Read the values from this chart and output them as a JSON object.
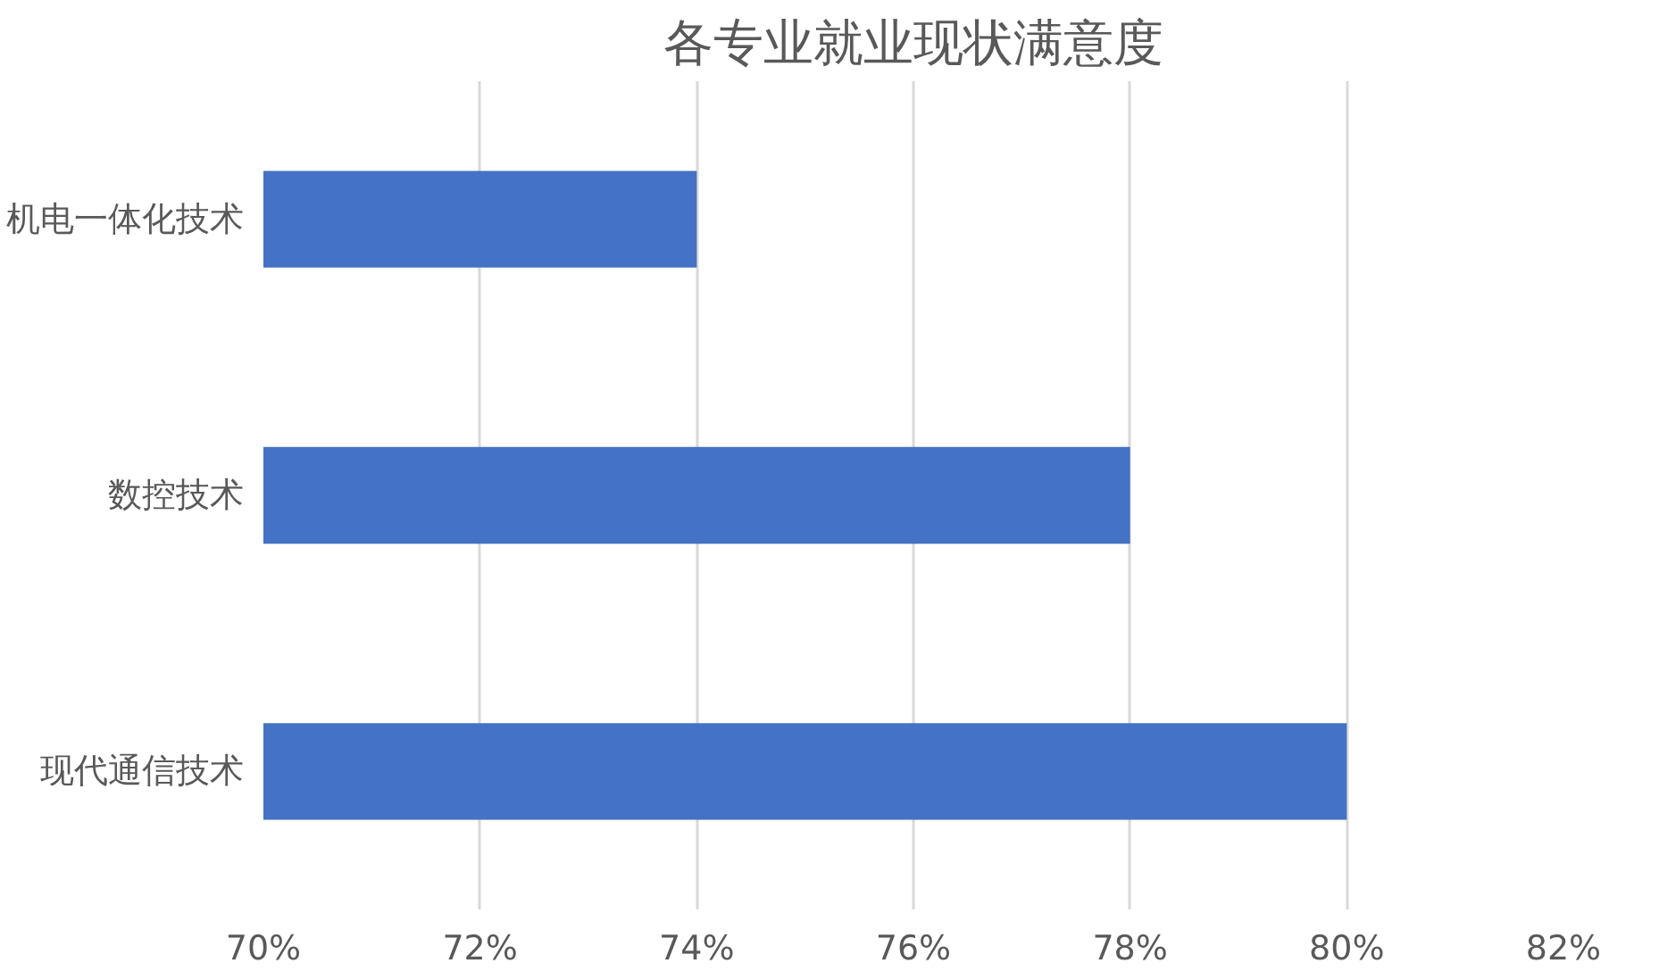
{
  "chart_data": {
    "type": "bar",
    "orientation": "horizontal",
    "title": "各专业就业现状满意度",
    "categories": [
      "机电一体化技术",
      "数控技术",
      "现代通信技术"
    ],
    "values": [
      74,
      78,
      80
    ],
    "color": "#4472c4",
    "xlim": [
      70,
      82
    ],
    "xticks": [
      {
        "value": 70,
        "label": "70%"
      },
      {
        "value": 72,
        "label": "72%"
      },
      {
        "value": 74,
        "label": "74%"
      },
      {
        "value": 76,
        "label": "76%"
      },
      {
        "value": 78,
        "label": "78%"
      },
      {
        "value": 80,
        "label": "80%"
      },
      {
        "value": 82,
        "label": "82%"
      }
    ],
    "grid": "x"
  }
}
